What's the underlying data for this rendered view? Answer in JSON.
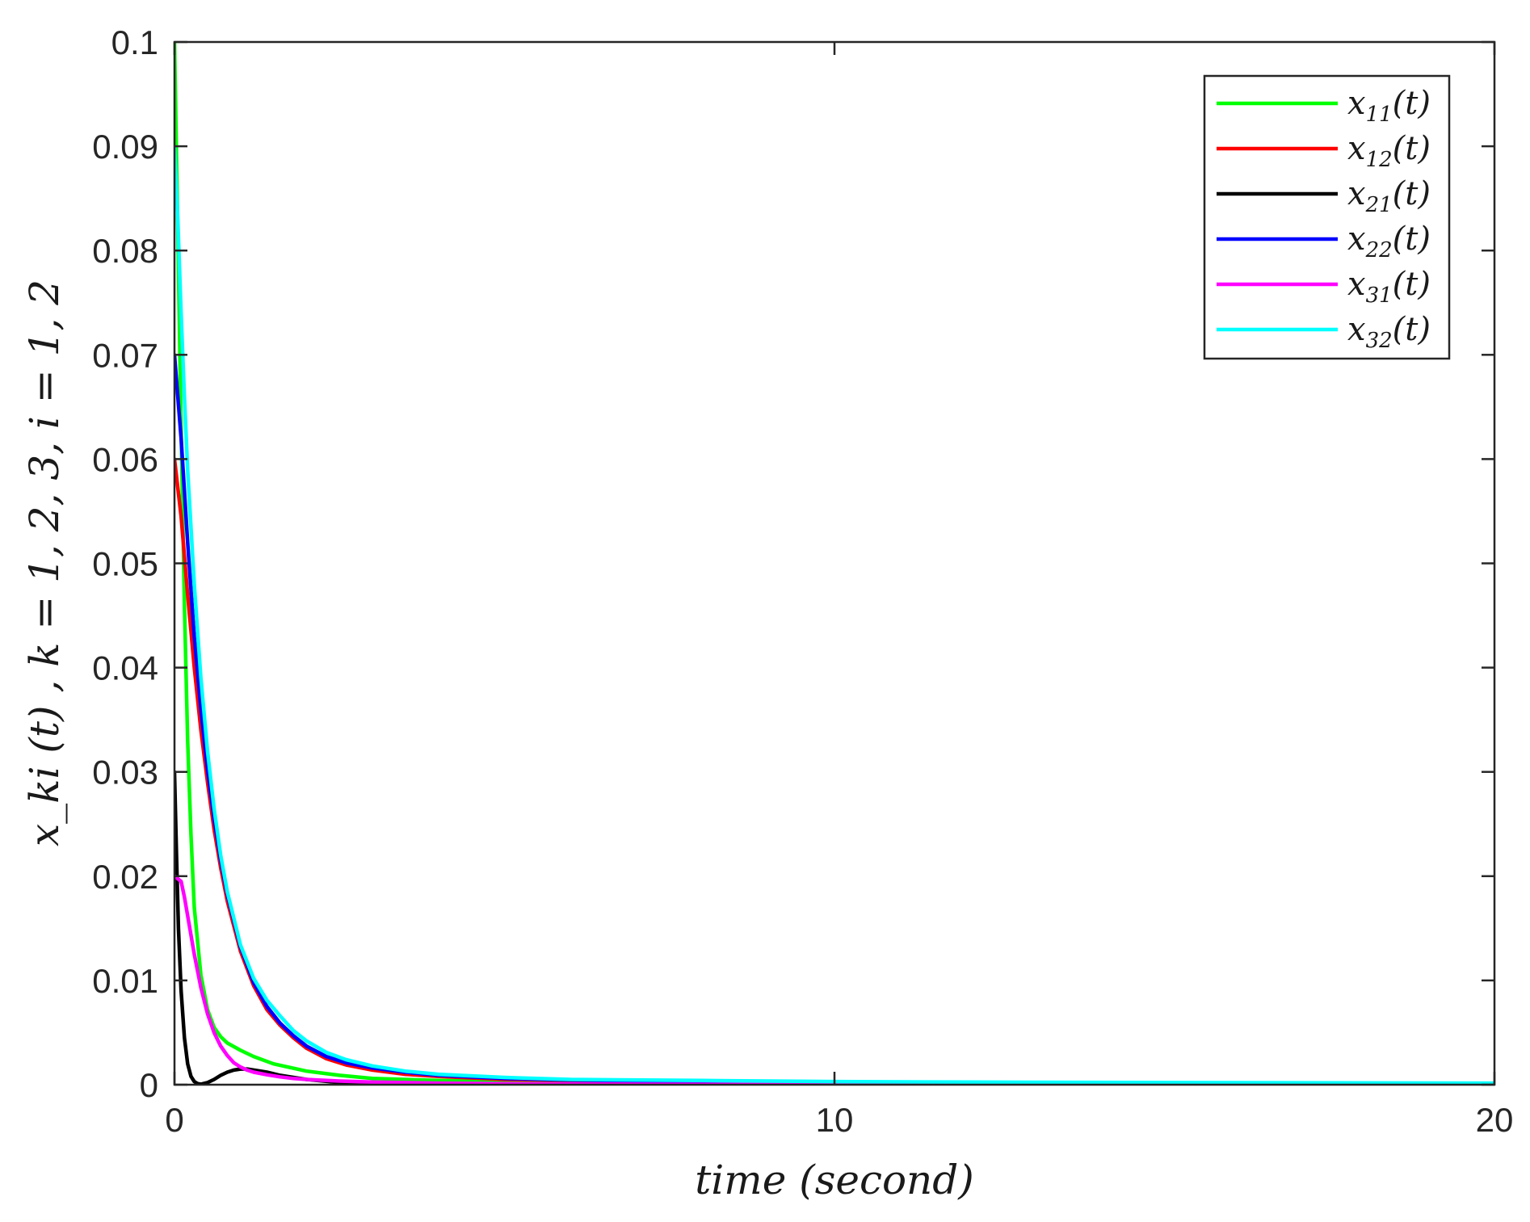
{
  "chart_data": {
    "type": "line",
    "xlabel": "time (second)",
    "ylabel": "x_ki (t) , k = 1, 2, 3, i = 1, 2",
    "xlim": [
      0,
      20
    ],
    "ylim": [
      0,
      0.1
    ],
    "x_ticks": [
      "0",
      "10",
      "20"
    ],
    "y_ticks": [
      "0",
      "0.01",
      "0.02",
      "0.03",
      "0.04",
      "0.05",
      "0.06",
      "0.07",
      "0.08",
      "0.09",
      "0.1"
    ],
    "grid": false,
    "legend_position": "top-right",
    "series": [
      {
        "name": "x11(t)",
        "base": "x",
        "sub": "11",
        "color": "#00ff00",
        "x": [
          0,
          0.05,
          0.1,
          0.15,
          0.2,
          0.25,
          0.3,
          0.4,
          0.5,
          0.6,
          0.7,
          0.8,
          1.0,
          1.2,
          1.5,
          2,
          2.5,
          3,
          4,
          5,
          6,
          8,
          10,
          12,
          15,
          20
        ],
        "y": [
          0.1,
          0.082,
          0.063,
          0.046,
          0.033,
          0.024,
          0.017,
          0.0105,
          0.0072,
          0.0055,
          0.0046,
          0.004,
          0.0033,
          0.0027,
          0.002,
          0.0013,
          0.0009,
          0.0006,
          0.0004,
          0.0003,
          0.0002,
          0.0001,
          8e-05,
          5e-05,
          3e-05,
          1e-05
        ]
      },
      {
        "name": "x12(t)",
        "base": "x",
        "sub": "12",
        "color": "#ff0000",
        "x": [
          0,
          0.1,
          0.2,
          0.3,
          0.4,
          0.5,
          0.6,
          0.7,
          0.8,
          1.0,
          1.2,
          1.4,
          1.6,
          1.8,
          2.0,
          2.3,
          2.6,
          3,
          3.5,
          4,
          5,
          6,
          8,
          10,
          12,
          15,
          20
        ],
        "y": [
          0.06,
          0.0545,
          0.047,
          0.04,
          0.034,
          0.029,
          0.0245,
          0.0208,
          0.0176,
          0.0128,
          0.0095,
          0.0072,
          0.0057,
          0.0045,
          0.0035,
          0.0025,
          0.0019,
          0.0014,
          0.001,
          0.0008,
          0.0005,
          0.0004,
          0.00025,
          0.00015,
          0.0001,
          7e-05,
          4e-05
        ]
      },
      {
        "name": "x21(t)",
        "base": "x",
        "sub": "21",
        "color": "#000000",
        "x": [
          0,
          0.03,
          0.06,
          0.1,
          0.15,
          0.2,
          0.25,
          0.3,
          0.35,
          0.4,
          0.5,
          0.6,
          0.7,
          0.8,
          0.9,
          1.0,
          1.1,
          1.2,
          1.4,
          1.6,
          1.8,
          2.0,
          2.5,
          3,
          4,
          5,
          20
        ],
        "y": [
          0.03,
          0.022,
          0.015,
          0.009,
          0.0045,
          0.002,
          0.0008,
          0.0003,
          0.0001,
          5e-05,
          0.0002,
          0.0005,
          0.0009,
          0.0012,
          0.0014,
          0.0015,
          0.0015,
          0.0014,
          0.0012,
          0.0009,
          0.0007,
          0.0005,
          0.0002,
          0.0001,
          5e-05,
          2e-05,
          0
        ]
      },
      {
        "name": "x22(t)",
        "base": "x",
        "sub": "22",
        "color": "#0000ff",
        "x": [
          0,
          0.1,
          0.2,
          0.3,
          0.4,
          0.5,
          0.6,
          0.7,
          0.8,
          1.0,
          1.2,
          1.4,
          1.6,
          1.8,
          2.0,
          2.3,
          2.6,
          3,
          3.5,
          4,
          5,
          6,
          8,
          10,
          12,
          15,
          20
        ],
        "y": [
          0.07,
          0.062,
          0.052,
          0.043,
          0.036,
          0.0302,
          0.0255,
          0.0215,
          0.0182,
          0.0132,
          0.0098,
          0.0075,
          0.0059,
          0.0047,
          0.0037,
          0.0027,
          0.0021,
          0.0016,
          0.0012,
          0.0009,
          0.0006,
          0.00045,
          0.0003,
          0.0002,
          0.00013,
          9e-05,
          5e-05
        ]
      },
      {
        "name": "x31(t)",
        "base": "x",
        "sub": "31",
        "color": "#ff00ff",
        "x": [
          0,
          0.1,
          0.15,
          0.2,
          0.3,
          0.4,
          0.5,
          0.6,
          0.7,
          0.8,
          0.9,
          1.0,
          1.1,
          1.2,
          1.4,
          1.6,
          1.8,
          2.0,
          2.5,
          3,
          4,
          5,
          6,
          8,
          10,
          12,
          15,
          20
        ],
        "y": [
          0.02,
          0.0195,
          0.018,
          0.0162,
          0.0125,
          0.0093,
          0.0068,
          0.005,
          0.0037,
          0.0028,
          0.0021,
          0.0017,
          0.0014,
          0.0012,
          0.00095,
          0.00075,
          0.0006,
          0.0005,
          0.00035,
          0.00025,
          0.00015,
          0.0001,
          6e-05,
          3e-05,
          2e-05,
          1e-05,
          1e-05,
          0
        ]
      },
      {
        "name": "x32(t)",
        "base": "x",
        "sub": "32",
        "color": "#00ffff",
        "x": [
          0,
          0.05,
          0.1,
          0.15,
          0.2,
          0.3,
          0.4,
          0.5,
          0.6,
          0.7,
          0.8,
          1.0,
          1.2,
          1.4,
          1.6,
          1.8,
          2.0,
          2.3,
          2.6,
          3,
          3.5,
          4,
          5,
          6,
          8,
          10,
          12,
          15,
          20
        ],
        "y": [
          0.09,
          0.083,
          0.074,
          0.066,
          0.059,
          0.048,
          0.039,
          0.032,
          0.0265,
          0.022,
          0.0185,
          0.0134,
          0.0102,
          0.0081,
          0.0066,
          0.0052,
          0.0042,
          0.0031,
          0.0024,
          0.0018,
          0.0013,
          0.001,
          0.0007,
          0.0005,
          0.0004,
          0.0003,
          0.00025,
          0.0002,
          0.00015
        ]
      }
    ]
  }
}
